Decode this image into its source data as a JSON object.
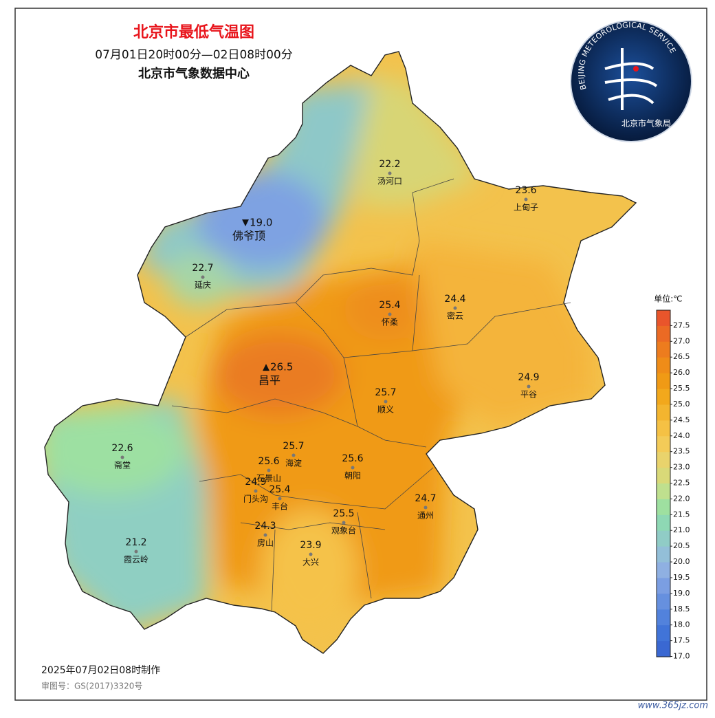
{
  "header": {
    "title": "北京市最低气温图",
    "period": "07月01日20时00分—02日08时00分",
    "source": "北京市气象数据中心"
  },
  "logo": {
    "ring_text": "BEIJING METEOROLOGICAL SERVICE",
    "name": "北京市气象局"
  },
  "stations": [
    {
      "name": "汤河口",
      "value": "22.2"
    },
    {
      "name": "上甸子",
      "value": "23.6"
    },
    {
      "name": "佛爷顶",
      "value": "19.0",
      "marker": "▼"
    },
    {
      "name": "延庆",
      "value": "22.7"
    },
    {
      "name": "怀柔",
      "value": "25.4"
    },
    {
      "name": "密云",
      "value": "24.4"
    },
    {
      "name": "昌平",
      "value": "26.5",
      "marker": "▲"
    },
    {
      "name": "平谷",
      "value": "24.9"
    },
    {
      "name": "顺义",
      "value": "25.7"
    },
    {
      "name": "海淀",
      "value": "25.7"
    },
    {
      "name": "石景山",
      "value": "25.6"
    },
    {
      "name": "朝阳",
      "value": "25.6"
    },
    {
      "name": "门头沟",
      "value": "24.9"
    },
    {
      "name": "丰台",
      "value": "25.4"
    },
    {
      "name": "斋堂",
      "value": "22.6"
    },
    {
      "name": "通州",
      "value": "24.7"
    },
    {
      "name": "观象台",
      "value": "25.5"
    },
    {
      "name": "房山",
      "value": "24.3"
    },
    {
      "name": "大兴",
      "value": "23.9"
    },
    {
      "name": "霞云岭",
      "value": "21.2"
    }
  ],
  "legend": {
    "unit": "单位:℃",
    "ticks": [
      {
        "value": 27.5,
        "label": "27.5"
      },
      {
        "value": 27,
        "label": "27.0"
      },
      {
        "value": 26.5,
        "label": "26.5"
      },
      {
        "value": 26,
        "label": "26.0"
      },
      {
        "value": 25.5,
        "label": "25.5"
      },
      {
        "value": 25,
        "label": "25.0"
      },
      {
        "value": 24.5,
        "label": "24.5"
      },
      {
        "value": 24,
        "label": "24.0"
      },
      {
        "value": 23.5,
        "label": "23.5"
      },
      {
        "value": 23,
        "label": "23.0"
      },
      {
        "value": 22.5,
        "label": "22.5"
      },
      {
        "value": 22,
        "label": "22.0"
      },
      {
        "value": 21.5,
        "label": "21.5"
      },
      {
        "value": 21,
        "label": "21.0"
      },
      {
        "value": 20.5,
        "label": "20.5"
      },
      {
        "value": 20,
        "label": "20.0"
      },
      {
        "value": 19.5,
        "label": "19.5"
      },
      {
        "value": 19,
        "label": "19.0"
      },
      {
        "value": 18.5,
        "label": "18.5"
      },
      {
        "value": 18,
        "label": "18.0"
      },
      {
        "value": 17.5,
        "label": "17.5"
      },
      {
        "value": 17,
        "label": "17.0"
      }
    ],
    "colors": [
      "#e9552b",
      "#eb6a24",
      "#ed7c1e",
      "#ef8c18",
      "#f09a15",
      "#f2a81c",
      "#f3b52f",
      "#f5c144",
      "#f3cb58",
      "#e9d36c",
      "#d9d978",
      "#bfe08e",
      "#9ee0a0",
      "#8ed8b4",
      "#90ccc6",
      "#93bfd8",
      "#8fb0e2",
      "#7b9ee2",
      "#6690df",
      "#5282dc",
      "#4174d8",
      "#3a68d2"
    ]
  },
  "footer": {
    "made": "2025年07月02日08时制作",
    "approval": "审图号：GS(2017)3320号"
  },
  "watermark": "www.365jz.com"
}
